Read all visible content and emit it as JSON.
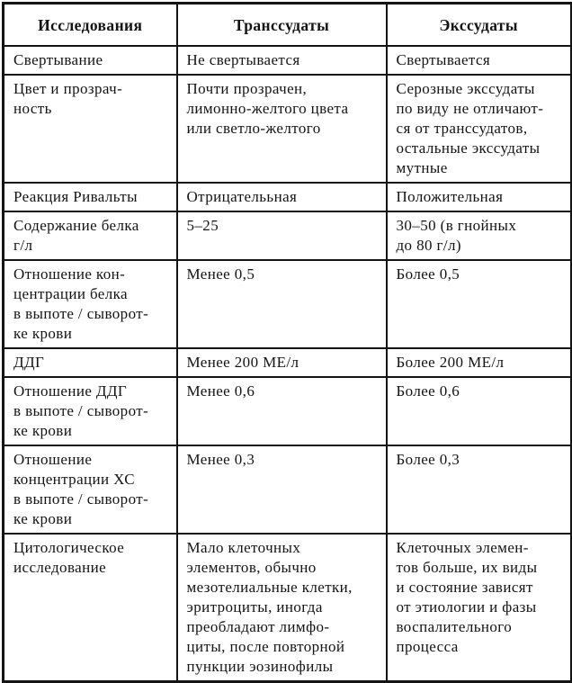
{
  "table": {
    "headers": [
      "Исследования",
      "Транссудаты",
      "Экссудаты"
    ],
    "rows": [
      {
        "cells": [
          "Свертывание",
          "Не свертывается",
          "Свертывается"
        ]
      },
      {
        "cells": [
          "Цвет и прозрач-\nность",
          "Почти прозрачен,\nлимонно-желтого цвета\nили светло-желтого",
          "Серозные экссудаты\nпо виду не отличают-\nся от транссудатов,\nостальные экссудаты\nмутные"
        ]
      },
      {
        "cells": [
          "Реакция Ривальты",
          "Отрицателььная",
          "Положительная"
        ]
      },
      {
        "cells": [
          "Содержание белка\nг/л",
          "5–25",
          "30–50 (в гнойных\nдо 80 г/л)"
        ]
      },
      {
        "cells": [
          "Отношение кон-\nцентрации белка\nв выпоте / сыворот-\nке крови",
          "Менее 0,5",
          "Более 0,5"
        ]
      },
      {
        "cells": [
          "ДДГ",
          "Менее 200 МЕ/л",
          "Более 200 МЕ/л"
        ]
      },
      {
        "cells": [
          "Отношение ДДГ\nв выпоте / сыворот-\nке крови",
          "Менее 0,6",
          "Более 0,6"
        ]
      },
      {
        "cells": [
          "Отношение\nконцентрации ХС\nв выпоте / сыворот-\nке крови",
          "Менее 0,3",
          "Более 0,3"
        ]
      },
      {
        "cells": [
          "Цитологическое\nисследование",
          "Мало клеточных\nэлементов, обычно\nмезотелиальные клетки,\nэритроциты, иногда\nпреобладают лимфо-\nциты, после повторной\nпункции эозинофилы",
          "Клеточных элемен-\nтов больше, их виды\nи состояние зависят\nот этиологии и фазы\nвоспалительного\nпроцесса"
        ]
      }
    ],
    "colors": {
      "border": "#141414",
      "background": "#ffffff",
      "text": "#141414"
    }
  }
}
